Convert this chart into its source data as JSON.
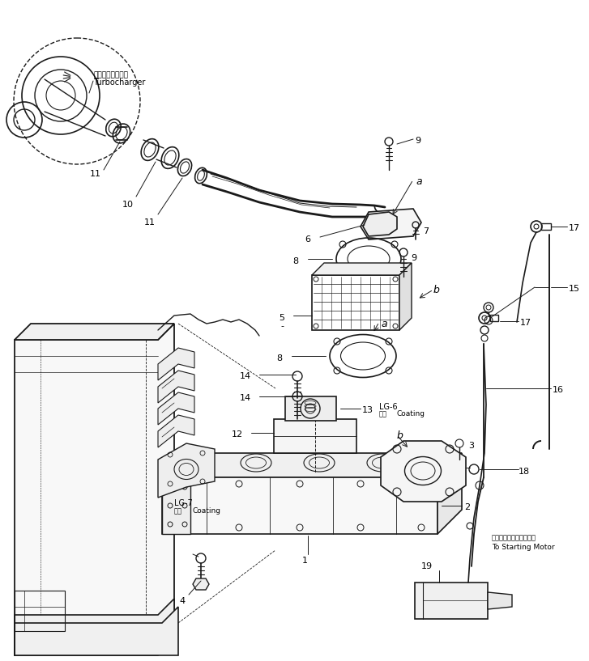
{
  "background_color": "#ffffff",
  "line_color": "#1a1a1a",
  "fig_width": 7.27,
  "fig_height": 8.17,
  "dpi": 100,
  "labels": {
    "turbocharger_jp": "ターボチャージャ",
    "turbocharger_en": "Turbocharger",
    "lg6": "LG-6",
    "coating_kanji": "途市",
    "coating": "Coating",
    "lg7": "LG-7",
    "to_starting_motor_jp": "スターティングモータへ",
    "to_starting_motor_en": "To Starting Motor"
  }
}
